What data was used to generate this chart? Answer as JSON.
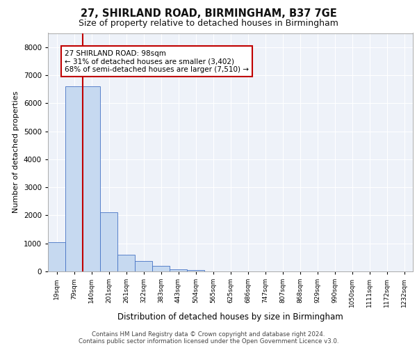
{
  "title1": "27, SHIRLAND ROAD, BIRMINGHAM, B37 7GE",
  "title2": "Size of property relative to detached houses in Birmingham",
  "xlabel": "Distribution of detached houses by size in Birmingham",
  "ylabel": "Number of detached properties",
  "categories": [
    "19sqm",
    "79sqm",
    "140sqm",
    "201sqm",
    "261sqm",
    "322sqm",
    "383sqm",
    "443sqm",
    "504sqm",
    "565sqm",
    "625sqm",
    "686sqm",
    "747sqm",
    "807sqm",
    "868sqm",
    "929sqm",
    "990sqm",
    "1050sqm",
    "1111sqm",
    "1172sqm",
    "1232sqm"
  ],
  "values": [
    1050,
    6600,
    6600,
    2100,
    600,
    380,
    190,
    70,
    50,
    0,
    0,
    0,
    0,
    0,
    0,
    0,
    0,
    0,
    0,
    0,
    0
  ],
  "bar_color": "#c6d9f0",
  "bar_edge_color": "#4472c4",
  "vline_color": "#c00000",
  "annotation_text": "27 SHIRLAND ROAD: 98sqm\n← 31% of detached houses are smaller (3,402)\n68% of semi-detached houses are larger (7,510) →",
  "annotation_box_color": "#ffffff",
  "annotation_box_edge": "#c00000",
  "ylim": [
    0,
    8500
  ],
  "yticks": [
    0,
    1000,
    2000,
    3000,
    4000,
    5000,
    6000,
    7000,
    8000
  ],
  "footer1": "Contains HM Land Registry data © Crown copyright and database right 2024.",
  "footer2": "Contains public sector information licensed under the Open Government Licence v3.0.",
  "bg_color": "#eef2f9",
  "grid_color": "#ffffff"
}
